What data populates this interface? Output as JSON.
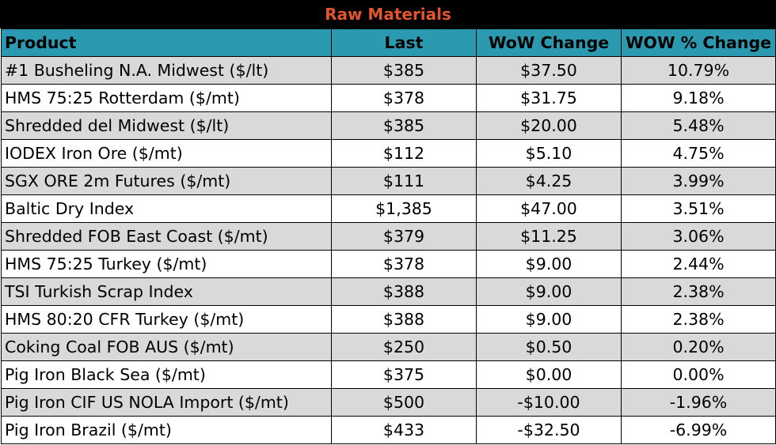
{
  "chart_data": {
    "type": "table",
    "title": "Raw Materials",
    "columns": [
      "Product",
      "Last",
      "WoW Change",
      "WOW % Change"
    ],
    "rows": [
      [
        "#1 Busheling N.A. Midwest ($/lt)",
        "$385",
        "$37.50",
        "10.79%"
      ],
      [
        "HMS 75:25 Rotterdam ($/mt)",
        "$378",
        "$31.75",
        "9.18%"
      ],
      [
        "Shredded del  Midwest ($/lt)",
        "$385",
        "$20.00",
        "5.48%"
      ],
      [
        "IODEX  Iron Ore ($/mt)",
        "$112",
        "$5.10",
        "4.75%"
      ],
      [
        "SGX ORE 2m Futures ($/mt)",
        "$111",
        "$4.25",
        "3.99%"
      ],
      [
        "Baltic Dry Index",
        "$1,385",
        "$47.00",
        "3.51%"
      ],
      [
        "Shredded FOB East Coast ($/mt)",
        "$379",
        "$11.25",
        "3.06%"
      ],
      [
        "HMS 75:25 Turkey ($/mt)",
        "$378",
        "$9.00",
        "2.44%"
      ],
      [
        "TSI Turkish Scrap Index",
        "$388",
        "$9.00",
        "2.38%"
      ],
      [
        "HMS 80:20 CFR Turkey ($/mt)",
        "$388",
        "$9.00",
        "2.38%"
      ],
      [
        "Coking Coal FOB AUS ($/mt)",
        "$250",
        "$0.50",
        "0.20%"
      ],
      [
        "Pig Iron Black Sea ($/mt)",
        "$375",
        "$0.00",
        "0.00%"
      ],
      [
        "Pig Iron CIF US NOLA Import ($/mt)",
        "$500",
        "-$10.00",
        "-1.96%"
      ],
      [
        "Pig Iron Brazil ($/mt)",
        "$433",
        "-$32.50",
        "-6.99%"
      ]
    ]
  },
  "colors": {
    "title_background": "#000000",
    "title_text": "#e0552a",
    "header_background": "#2b9ab0",
    "row_shade": "#d9d9d9",
    "row_plain": "#ffffff"
  }
}
